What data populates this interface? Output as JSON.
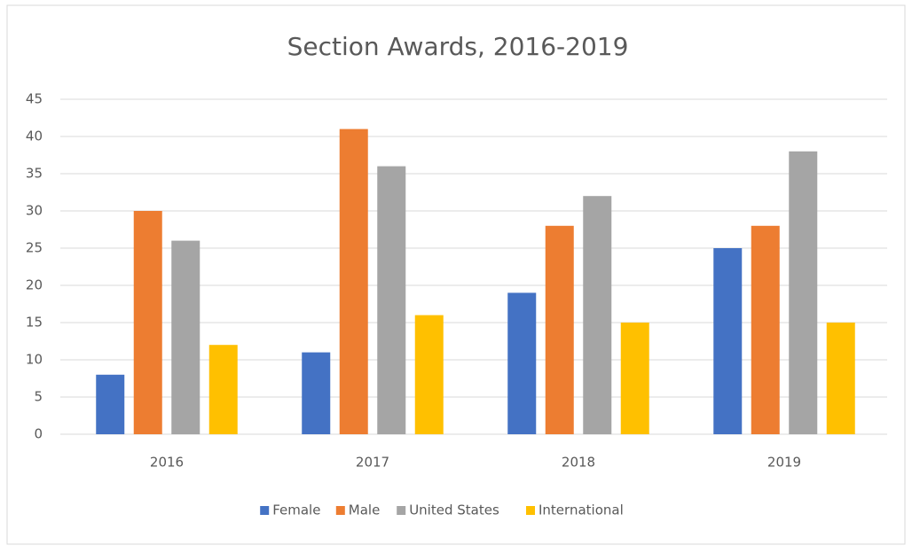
{
  "chart_data": {
    "type": "bar",
    "title": "Section Awards, 2016-2019",
    "categories": [
      "2016",
      "2017",
      "2018",
      "2019"
    ],
    "series": [
      {
        "name": "Female",
        "color": "#4472c4",
        "values": [
          8,
          11,
          19,
          25
        ]
      },
      {
        "name": "Male",
        "color": "#ed7d31",
        "values": [
          30,
          41,
          28,
          28
        ]
      },
      {
        "name": "United States",
        "color": "#a5a5a5",
        "values": [
          26,
          36,
          32,
          38
        ]
      },
      {
        "name": "International",
        "color": "#ffc000",
        "values": [
          12,
          16,
          15,
          15
        ]
      }
    ],
    "ylim": [
      0,
      45
    ],
    "yticks": [
      0,
      5,
      10,
      15,
      20,
      25,
      30,
      35,
      40,
      45
    ],
    "grid": true,
    "legend": "bottom"
  }
}
